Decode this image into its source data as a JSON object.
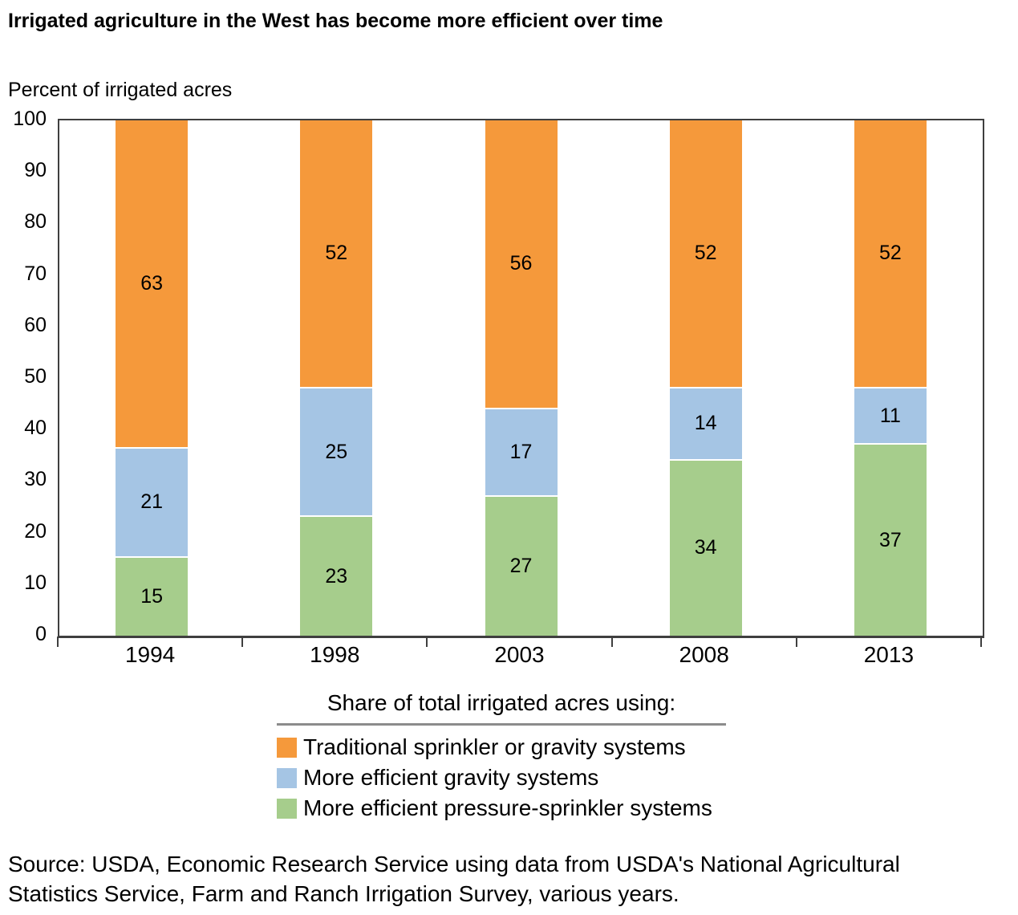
{
  "title": "Irrigated agriculture in the West has become more efficient over time",
  "chart_data": {
    "type": "bar",
    "stacked": true,
    "title": "Irrigated agriculture in the West has become more efficient over time",
    "ylabel": "Percent of irrigated acres",
    "xlabel": "",
    "categories": [
      "1994",
      "1998",
      "2003",
      "2008",
      "2013"
    ],
    "series": [
      {
        "name": "More efficient pressure-sprinkler systems",
        "color": "#a6cd8c",
        "values": [
          15,
          23,
          27,
          34,
          37
        ]
      },
      {
        "name": "More efficient gravity systems",
        "color": "#a5c5e4",
        "values": [
          21,
          25,
          17,
          14,
          11
        ]
      },
      {
        "name": "Traditional sprinkler or gravity systems",
        "color": "#f5993b",
        "values": [
          63,
          52,
          56,
          52,
          52
        ]
      }
    ],
    "ylim": [
      0,
      100
    ],
    "yticks": [
      0,
      10,
      20,
      30,
      40,
      50,
      60,
      70,
      80,
      90,
      100
    ],
    "grid": false,
    "legend_position": "bottom"
  },
  "legend": {
    "title": "Share of total irrigated acres using:",
    "items": [
      {
        "label": "Traditional sprinkler or gravity systems",
        "color": "#f5993b"
      },
      {
        "label": "More efficient gravity systems",
        "color": "#a5c5e4"
      },
      {
        "label": "More efficient pressure-sprinkler systems",
        "color": "#a6cd8c"
      }
    ]
  },
  "source": {
    "line1": "Source: USDA, Economic Research Service using data from USDA's National Agricultural",
    "line2": "Statistics Service, Farm and Ranch Irrigation Survey, various years."
  },
  "colors": {
    "axis": "#3f3f3f",
    "legend_rule": "#8c8c8c",
    "text": "#000000"
  }
}
